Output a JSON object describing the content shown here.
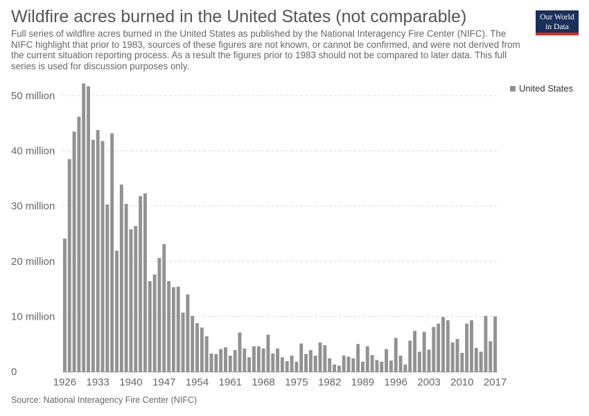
{
  "header": {
    "title": "Wildfire acres burned in the United States (not comparable)",
    "subtitle": "Full series of wildfire acres burned in the United States as published by the National Interagency Fire Center (NIFC). The NIFC highlight that prior to 1983, sources of these figures are not known, or cannot be confirmed, and were not derived from the current situation reporting process. As a result the figures prior to 1983 should not be compared to later data. This full series is used for discussion purposes only."
  },
  "logo": {
    "line1": "Our World",
    "line2": "in Data"
  },
  "source": "Source: National Interagency Fire Center (NIFC)",
  "colors": {
    "bar": "#929292",
    "grid": "#dddddd",
    "logo_bg": "#1a2f5a",
    "logo_accent": "#d42b21"
  },
  "chart_data": {
    "type": "bar",
    "title": "Wildfire acres burned in the United States (not comparable)",
    "xlabel": "",
    "ylabel": "",
    "ylim": [
      0,
      50000000
    ],
    "grid": true,
    "legend_position": "top-right",
    "y_ticks": [
      {
        "value": 0,
        "label": "0"
      },
      {
        "value": 10000000,
        "label": "10 million"
      },
      {
        "value": 20000000,
        "label": "20 million"
      },
      {
        "value": 30000000,
        "label": "30 million"
      },
      {
        "value": 40000000,
        "label": "40 million"
      },
      {
        "value": 50000000,
        "label": "50 million"
      }
    ],
    "x_ticks": [
      "1926",
      "1933",
      "1940",
      "1947",
      "1954",
      "1961",
      "1968",
      "1975",
      "1982",
      "1989",
      "1996",
      "2003",
      "2010",
      "2017"
    ],
    "series": [
      {
        "name": "United States",
        "x": [
          1926,
          1927,
          1928,
          1929,
          1930,
          1931,
          1932,
          1933,
          1934,
          1935,
          1936,
          1937,
          1938,
          1939,
          1940,
          1941,
          1942,
          1943,
          1944,
          1945,
          1946,
          1947,
          1948,
          1949,
          1950,
          1951,
          1952,
          1953,
          1954,
          1955,
          1956,
          1957,
          1958,
          1959,
          1960,
          1961,
          1962,
          1963,
          1964,
          1965,
          1966,
          1967,
          1968,
          1969,
          1970,
          1971,
          1972,
          1973,
          1974,
          1975,
          1976,
          1977,
          1978,
          1979,
          1980,
          1981,
          1982,
          1983,
          1984,
          1985,
          1986,
          1987,
          1988,
          1989,
          1990,
          1991,
          1992,
          1993,
          1994,
          1995,
          1996,
          1997,
          1998,
          1999,
          2000,
          2001,
          2002,
          2003,
          2004,
          2005,
          2006,
          2007,
          2008,
          2009,
          2010,
          2011,
          2012,
          2013,
          2014,
          2015,
          2016,
          2017
        ],
        "values": [
          24100000,
          38500000,
          43500000,
          46200000,
          52200000,
          51700000,
          42000000,
          43800000,
          41800000,
          30300000,
          43200000,
          21900000,
          33900000,
          30400000,
          25800000,
          26400000,
          31800000,
          32300000,
          16400000,
          17600000,
          20600000,
          23100000,
          16400000,
          15300000,
          15400000,
          10700000,
          14000000,
          10100000,
          8800000,
          8000000,
          6400000,
          3300000,
          3200000,
          4100000,
          4400000,
          2900000,
          3900000,
          7100000,
          4200000,
          2600000,
          4600000,
          4600000,
          4200000,
          6700000,
          3300000,
          4200000,
          2600000,
          1900000,
          2900000,
          1800000,
          5100000,
          3200000,
          3900000,
          2900000,
          5300000,
          4800000,
          2400000,
          1300000,
          1100000,
          2900000,
          2700000,
          2400000,
          5000000,
          1800000,
          4600000,
          3000000,
          2100000,
          1800000,
          4100000,
          2000000,
          6100000,
          2900000,
          1300000,
          5600000,
          7400000,
          3600000,
          7200000,
          4000000,
          8100000,
          8700000,
          9900000,
          9300000,
          5300000,
          5900000,
          3400000,
          8700000,
          9300000,
          4300000,
          3600000,
          10100000,
          5500000,
          10000000
        ]
      }
    ]
  }
}
